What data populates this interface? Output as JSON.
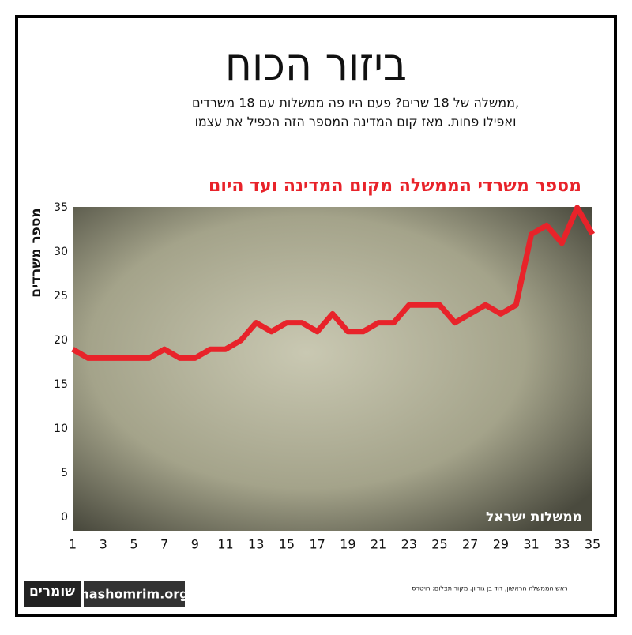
{
  "chart_data": {
    "type": "line",
    "title": "ביזור הכוח",
    "subtitle": [
      "ממשלה של 18 שרים? פעם היו פה ממשלות עם 18 משרדים,",
      "ואפילו פחות. מאז קום המדינה המספר הזה הכפיל את עצמו"
    ],
    "chart_title": "מספר משרדי הממשלה מקום המדינה ועד היום",
    "y_label": "מספר משרדים",
    "x_label": "ממשלות ישראל",
    "x": [
      1,
      2,
      3,
      4,
      5,
      6,
      7,
      8,
      9,
      10,
      11,
      12,
      13,
      14,
      15,
      16,
      17,
      18,
      19,
      20,
      21,
      22,
      23,
      24,
      25,
      26,
      27,
      28,
      29,
      30,
      31,
      32,
      33,
      34,
      35
    ],
    "series": [
      {
        "color": "#e8232a",
        "values": [
          19,
          18,
          18,
          18,
          18,
          18,
          19,
          18,
          18,
          19,
          19,
          20,
          22,
          21,
          22,
          22,
          21,
          23,
          21,
          21,
          22,
          22,
          24,
          24,
          24,
          22,
          23,
          24,
          23,
          24,
          32,
          33,
          31,
          35,
          32
        ]
      }
    ],
    "xlim": [
      1,
      35
    ],
    "xticks": [
      1,
      3,
      5,
      7,
      9,
      11,
      13,
      15,
      17,
      19,
      21,
      23,
      25,
      27,
      29,
      31,
      33,
      35
    ],
    "ylim": [
      0,
      35
    ],
    "yticks": [
      0,
      5,
      10,
      15,
      20,
      25,
      30,
      35
    ],
    "grid": false,
    "credit": "ראש הממשלה הראשון, דוד בן גוריון. מקור תצלום: רויטרס",
    "logo": "שומרים",
    "site": "hashomrim.org"
  }
}
